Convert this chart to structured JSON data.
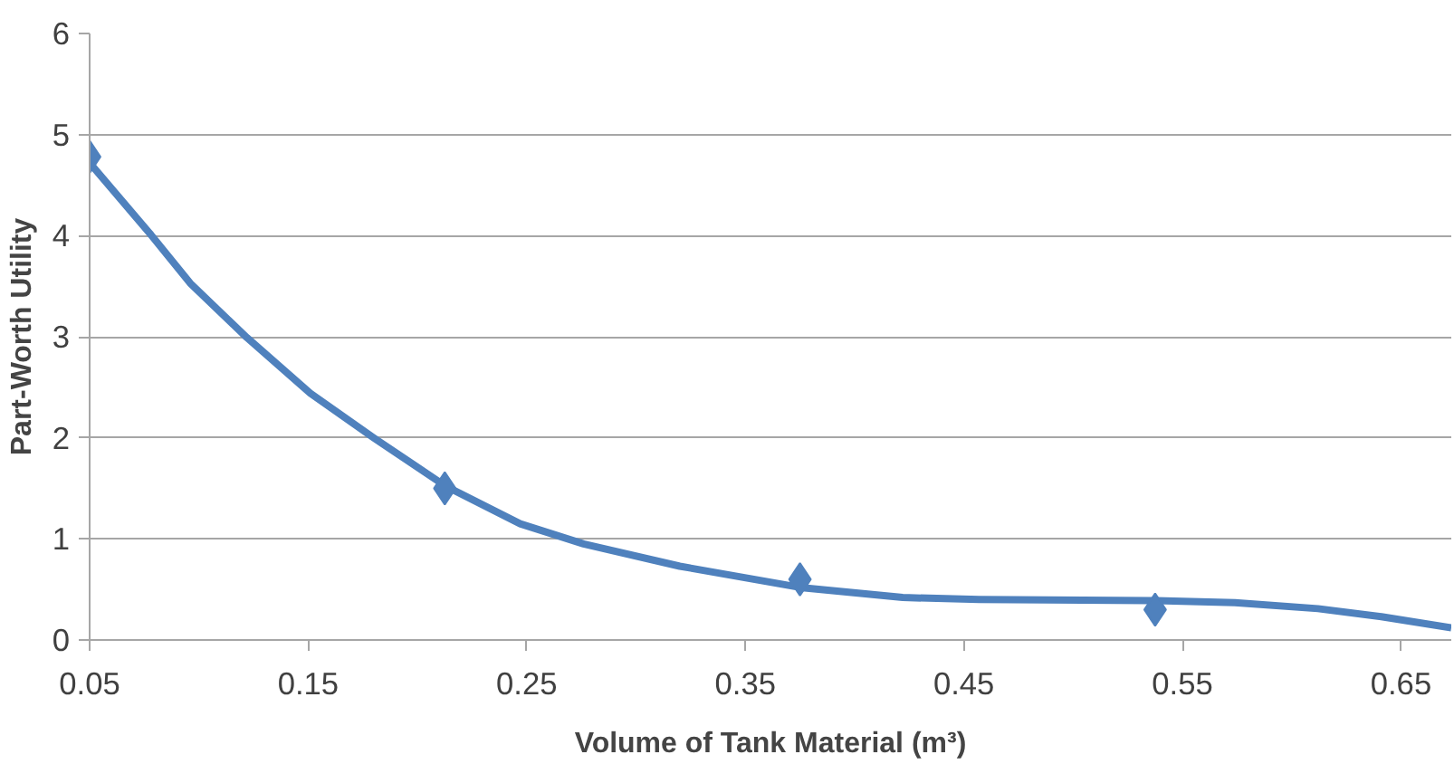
{
  "chart_data": {
    "type": "scatter",
    "xlabel": "Volume of Tank Material (m³)",
    "ylabel": "Part-Worth Utility",
    "xlim": [
      0.05,
      0.673
    ],
    "xticks": [
      0.05,
      0.15,
      0.25,
      0.35,
      0.45,
      0.55,
      0.65
    ],
    "ylim": [
      0,
      6
    ],
    "yticks": [
      0,
      1,
      2,
      3,
      4,
      5,
      6
    ],
    "grid": "y",
    "series": [
      {
        "type": "line",
        "marker": "none",
        "line_style": "solid",
        "color": "#4f81bd",
        "x": [
          0.05,
          0.078,
          0.096,
          0.122,
          0.151,
          0.18,
          0.213,
          0.247,
          0.276,
          0.32,
          0.375,
          0.422,
          0.457,
          0.538,
          0.574,
          0.612,
          0.641,
          0.673
        ],
        "values": [
          4.72,
          4.01,
          3.53,
          2.99,
          2.44,
          2.0,
          1.52,
          1.15,
          0.95,
          0.73,
          0.52,
          0.42,
          0.4,
          0.39,
          0.37,
          0.31,
          0.23,
          0.12
        ]
      },
      {
        "marker": "diamond",
        "color": "#4f81bd",
        "x": [
          0.05,
          0.2125,
          0.375,
          0.5375
        ],
        "values": [
          4.78,
          1.5,
          0.6,
          0.3
        ]
      }
    ]
  }
}
